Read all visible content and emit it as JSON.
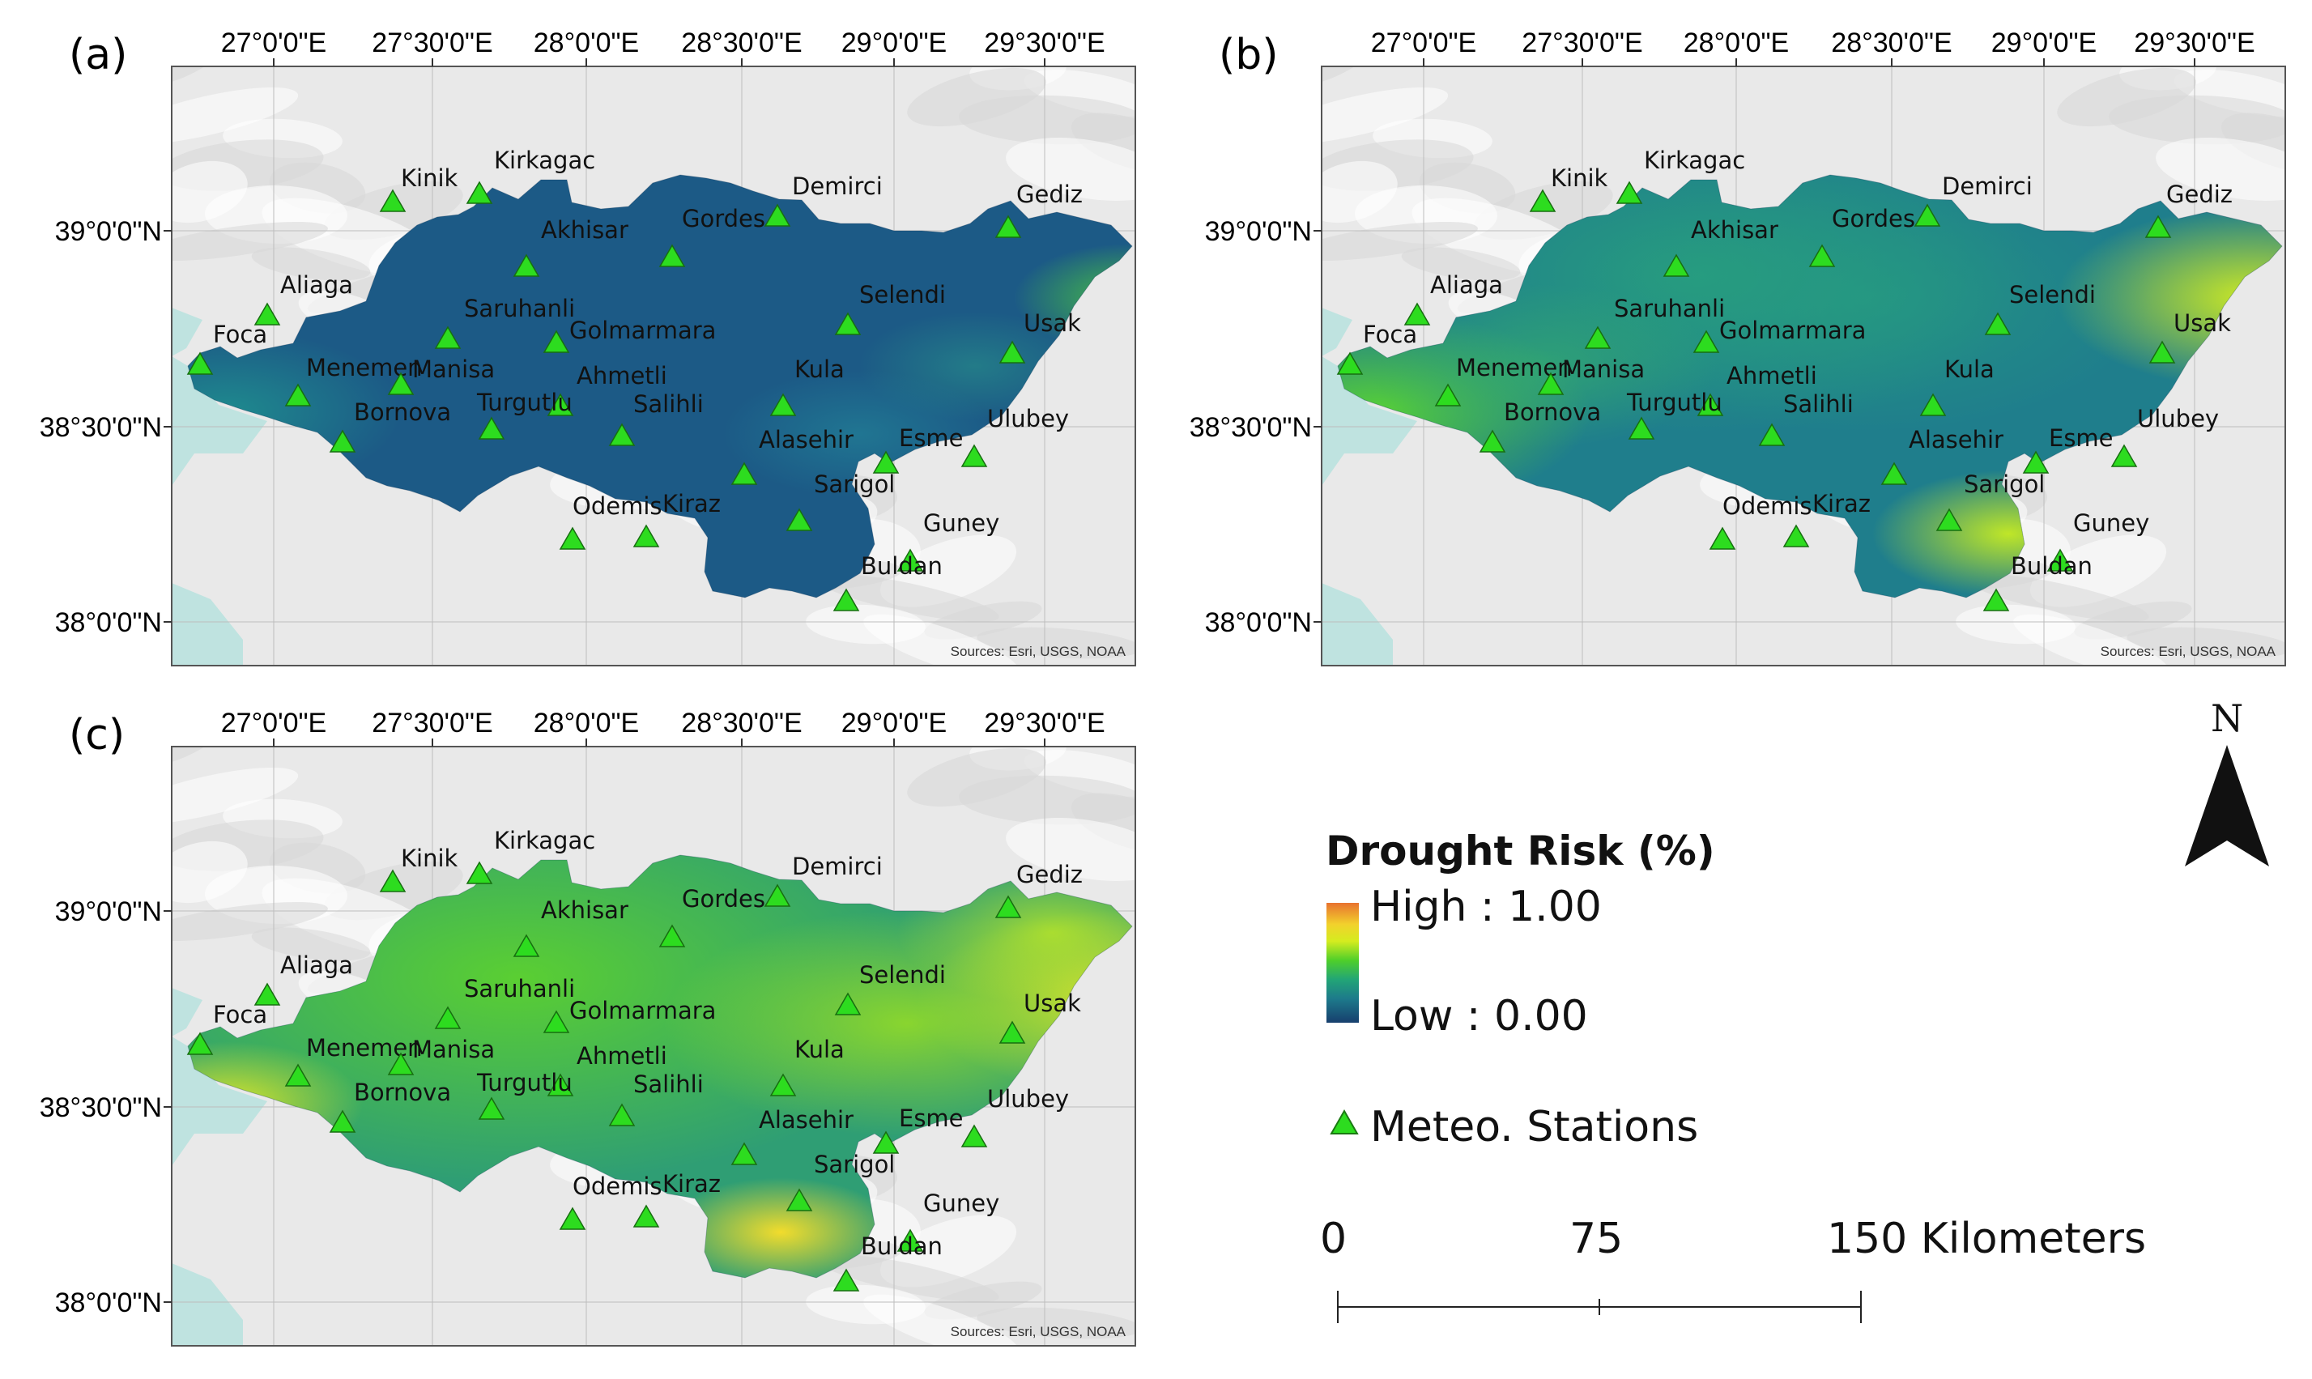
{
  "panels": [
    {
      "label": "(a)",
      "scheme": "a",
      "source": "Sources: Esri, USGS, NOAA",
      "station_color": "#2ddc1f"
    },
    {
      "label": "(b)",
      "scheme": "b",
      "source": "Sources: Esri, USGS, NOAA"
    },
    {
      "label": "(c)",
      "scheme": "c",
      "source": "Sources: Esri, USGS, NOAA"
    }
  ],
  "lon_ticks": [
    "27°0'0\"E",
    "27°30'0\"E",
    "28°0'0\"E",
    "28°30'0\"E",
    "29°0'0\"E",
    "29°30'0\"E"
  ],
  "lat_ticks": [
    "39°0'0\"N",
    "38°30'0\"N",
    "38°0'0\"N"
  ],
  "stations": [
    {
      "name": "Kinik"
    },
    {
      "name": "Kirkagac"
    },
    {
      "name": "Demirci"
    },
    {
      "name": "Gediz"
    },
    {
      "name": "Akhisar"
    },
    {
      "name": "Gordes"
    },
    {
      "name": "Aliaga"
    },
    {
      "name": "Selendi"
    },
    {
      "name": "Usak"
    },
    {
      "name": "Saruhanli"
    },
    {
      "name": "Golmarmara"
    },
    {
      "name": "Foca"
    },
    {
      "name": "Menemen"
    },
    {
      "name": "Manisa"
    },
    {
      "name": "Ahmetli"
    },
    {
      "name": "Kula"
    },
    {
      "name": "Turgutlu"
    },
    {
      "name": "Salihli"
    },
    {
      "name": "Bornova"
    },
    {
      "name": "Ulubey"
    },
    {
      "name": "Esme"
    },
    {
      "name": "Alasehir"
    },
    {
      "name": "Sarigol"
    },
    {
      "name": "Odemis"
    },
    {
      "name": "Kiraz"
    },
    {
      "name": "Guney"
    },
    {
      "name": "Buldan"
    }
  ],
  "legend": {
    "title": "Drought Risk (%)",
    "high": "High : 1.00",
    "low": "Low : 0.00",
    "stations_label": "Meteo. Stations"
  },
  "scale_bar": {
    "ticks": [
      "0",
      "75",
      "150 Kilometers"
    ]
  },
  "north_arrow": {
    "label": "N"
  },
  "colors": {
    "water": "#bfe3e0",
    "relief": "#e9e9e9",
    "station": "#2ddc1f",
    "low": "#173f6e",
    "high": "#e8722f"
  }
}
